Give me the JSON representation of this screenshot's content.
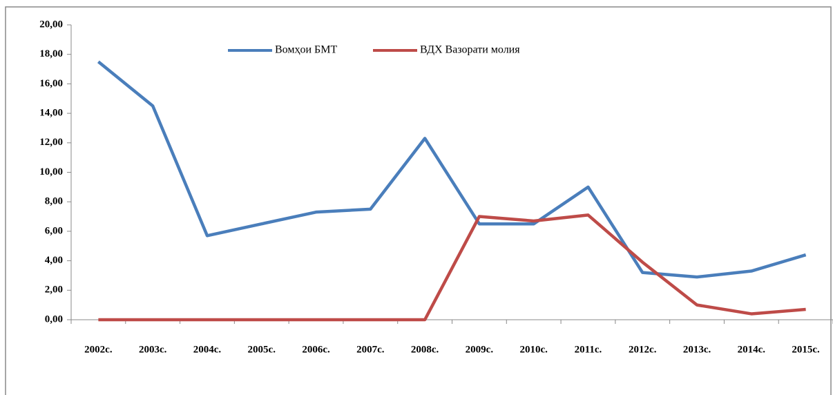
{
  "chart_data": {
    "type": "line",
    "categories": [
      "2002с.",
      "2003с.",
      "2004с.",
      "2005с.",
      "2006с.",
      "2007с.",
      "2008с.",
      "2009с.",
      "2010с.",
      "2011с.",
      "2012с.",
      "2013с.",
      "2014с.",
      "2015с."
    ],
    "series": [
      {
        "name": "Вомҳои БМТ",
        "color": "#4a7ebb",
        "values": [
          17.5,
          14.5,
          5.7,
          6.5,
          7.3,
          7.5,
          12.3,
          6.5,
          6.5,
          9.0,
          3.2,
          2.9,
          3.3,
          4.4
        ]
      },
      {
        "name": "ВДХ Вазорати молия",
        "color": "#be4b48",
        "values": [
          0,
          0,
          0,
          0,
          0,
          0,
          0,
          7.0,
          6.7,
          7.1,
          3.9,
          1.0,
          0.4,
          0.7
        ]
      }
    ],
    "ylim": [
      0,
      20
    ],
    "yticks": [
      {
        "value": 0,
        "label": "0,00"
      },
      {
        "value": 2,
        "label": "2,00"
      },
      {
        "value": 4,
        "label": "4,00"
      },
      {
        "value": 6,
        "label": "6,00"
      },
      {
        "value": 8,
        "label": "8,00"
      },
      {
        "value": 10,
        "label": "10,00"
      },
      {
        "value": 12,
        "label": "12,00"
      },
      {
        "value": 14,
        "label": "14,00"
      },
      {
        "value": 16,
        "label": "16,00"
      },
      {
        "value": 18,
        "label": "18,00"
      },
      {
        "value": 20,
        "label": "20,00"
      }
    ],
    "grid": false,
    "legend": "top"
  }
}
